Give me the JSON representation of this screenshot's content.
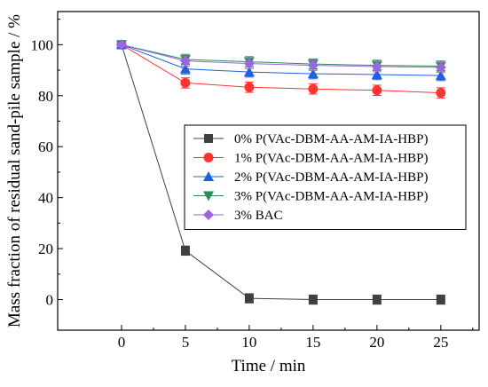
{
  "chart_data": {
    "type": "line",
    "xlabel": "Time / min",
    "ylabel": "Mass fraction of residual sand-pile sample / %",
    "xlim": [
      -5,
      28
    ],
    "ylim": [
      -12,
      113
    ],
    "xticks": [
      0,
      5,
      10,
      15,
      20,
      25
    ],
    "yticks": [
      0,
      20,
      40,
      60,
      80,
      100
    ],
    "legend_position": "center-right",
    "grid": false,
    "x": [
      0,
      5,
      10,
      15,
      20,
      25
    ],
    "series": [
      {
        "name": "0% P(VAc-DBM-AA-AM-IA-HBP)",
        "color": "#404040",
        "marker": "square",
        "values": [
          100,
          19.2,
          0.5,
          0,
          0,
          0
        ],
        "errors": [
          0.8,
          1.8,
          1.8,
          1.8,
          1.8,
          1.8
        ]
      },
      {
        "name": "1% P(VAc-DBM-AA-AM-IA-HBP)",
        "color": "#ff3333",
        "marker": "circle",
        "values": [
          100,
          85,
          83.3,
          82.6,
          82.1,
          81.1
        ],
        "errors": [
          0.8,
          2.0,
          2.0,
          2.0,
          2.0,
          2.0
        ]
      },
      {
        "name": "2% P(VAc-DBM-AA-AM-IA-HBP)",
        "color": "#1f5fe0",
        "marker": "triangle-up",
        "values": [
          100,
          90.5,
          89.3,
          88.6,
          88.3,
          87.9
        ],
        "errors": [
          0.8,
          2.0,
          2.0,
          2.0,
          2.0,
          2.0
        ]
      },
      {
        "name": "3% P(VAc-DBM-AA-AM-IA-HBP)",
        "color": "#2e8b57",
        "marker": "triangle-down",
        "values": [
          100,
          94.2,
          93.3,
          92.4,
          91.9,
          91.6
        ],
        "errors": [
          0.8,
          2.0,
          2.0,
          2.0,
          2.0,
          2.0
        ]
      },
      {
        "name": "3% BAC",
        "color": "#9966dd",
        "marker": "diamond",
        "values": [
          100,
          93.6,
          92.6,
          91.9,
          91.4,
          91.1
        ],
        "errors": [
          0.8,
          2.0,
          2.0,
          2.0,
          2.0,
          2.0
        ]
      }
    ]
  }
}
